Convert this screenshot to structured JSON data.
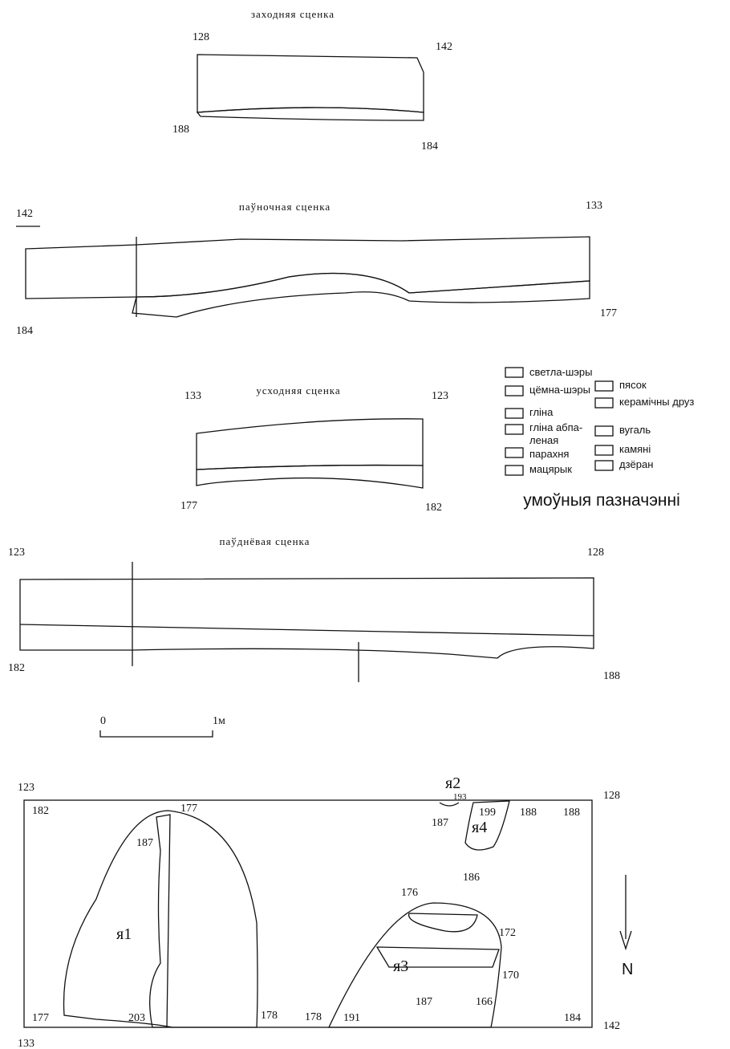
{
  "sections": [
    {
      "title": "заходняя сценка",
      "labels": [
        "128",
        "142",
        "188",
        "184"
      ]
    },
    {
      "title": "паўночная сценка",
      "labels": [
        "142",
        "133",
        "184",
        "177"
      ]
    },
    {
      "title": "усходняя сценка",
      "labels": [
        "133",
        "123",
        "177",
        "182"
      ]
    },
    {
      "title": "паўднёвая сценка",
      "labels": [
        "123",
        "128",
        "182",
        "188"
      ]
    }
  ],
  "legend": {
    "title": "умоўныя пазначэнні",
    "items": [
      "светла-шэры",
      "цёмна-шэры",
      "гліна",
      "гліна абпа-",
      "леная",
      "парахня",
      "мацярык",
      "пясок",
      "керамічны друз",
      "вугаль",
      "камяні",
      "дзёран"
    ]
  },
  "scale": {
    "start": "0",
    "end": "1м"
  },
  "plan": {
    "corners": [
      "123",
      "128",
      "133",
      "142"
    ],
    "pits": [
      "я1",
      "я2",
      "я3",
      "я4"
    ],
    "levels": [
      "182",
      "177",
      "187",
      "203",
      "177",
      "178",
      "178",
      "191",
      "187",
      "166",
      "170",
      "184",
      "172",
      "176",
      "186",
      "193",
      "187",
      "199",
      "188",
      "188"
    ],
    "north": "N"
  }
}
